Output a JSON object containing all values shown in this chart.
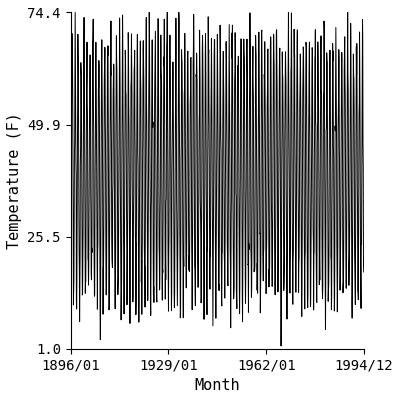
{
  "title": "",
  "xlabel": "Month",
  "ylabel": "Temperature (F)",
  "start_year": 1896,
  "start_month": 1,
  "end_year": 1994,
  "end_month": 12,
  "yticks": [
    1.0,
    25.5,
    49.9,
    74.4
  ],
  "xtick_labels": [
    "1896/01",
    "1929/01",
    "1962/01",
    "1994/12"
  ],
  "line_color": "#000000",
  "line_width": 0.7,
  "background_color": "#ffffff",
  "ylim": [
    1.0,
    74.4
  ],
  "mean_temp": 40.0,
  "amplitude": 28.0,
  "noise_std": 4.0,
  "figsize": [
    4.0,
    4.0
  ],
  "dpi": 100
}
